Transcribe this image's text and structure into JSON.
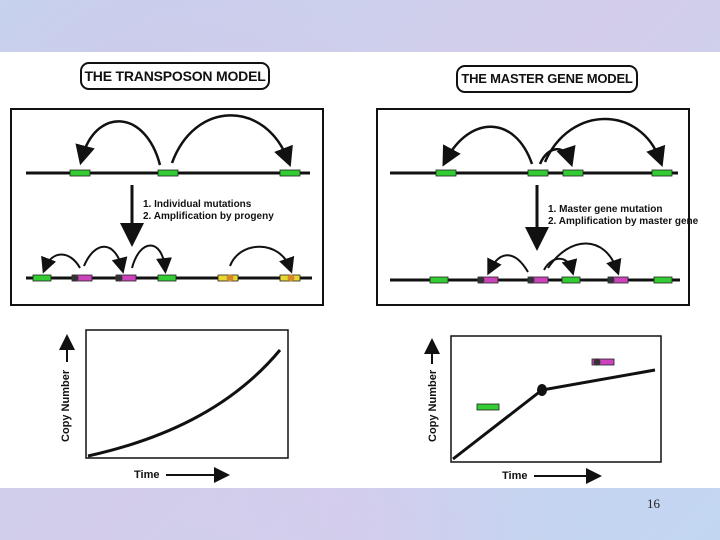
{
  "slide": {
    "page_number": "16"
  },
  "left_model": {
    "title": "THE TRANSPOSON MODEL",
    "steps": [
      "1. Individual mutations",
      "2. Amplification by progeny"
    ],
    "graph": {
      "xlabel": "Time",
      "ylabel": "Copy Number",
      "curve": "exponential"
    }
  },
  "right_model": {
    "title": "THE MASTER GENE MODEL",
    "steps": [
      "1. Master gene mutation",
      "2. Amplification by master gene"
    ],
    "graph": {
      "xlabel": "Time",
      "ylabel": "Copy Number",
      "curve": "piecewise-linear"
    }
  },
  "colors": {
    "green": "#33cc33",
    "magenta": "#cc44bb",
    "yellow": "#e8d830",
    "line": "#111111",
    "background": "#c8d8f0"
  }
}
